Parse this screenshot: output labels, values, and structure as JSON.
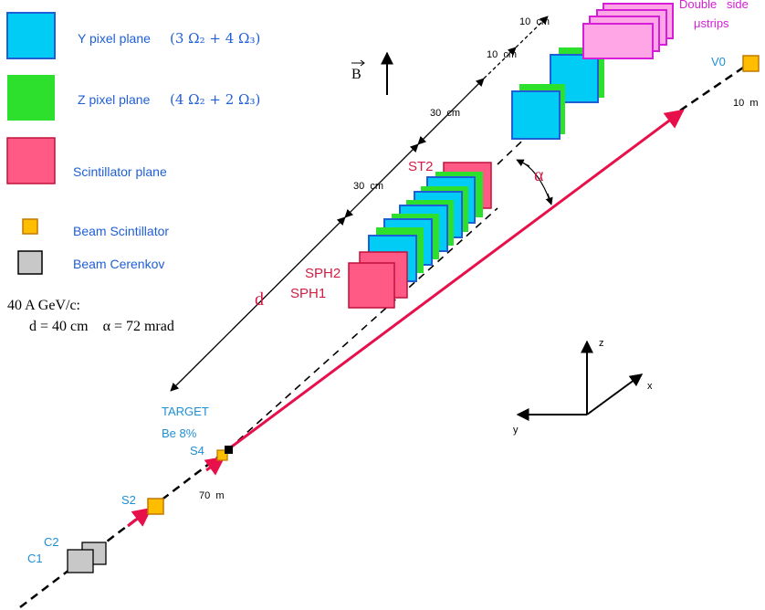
{
  "legend": {
    "y_pixel": {
      "label": "Y pixel plane",
      "formula": "(3 Ω₂ + 4 Ω₃)",
      "color": "#00ccf5"
    },
    "z_pixel": {
      "label": "Z pixel plane",
      "formula": "(4 Ω₂ + 2 Ω₃)",
      "color": "#2ee02e"
    },
    "scintillator": {
      "label": "Scintillator plane",
      "color": "#ff5a86"
    },
    "beam_scintillator": {
      "label": "Beam Scintillator",
      "color": "#ffbd00"
    },
    "beam_cerenkov": {
      "label": "Beam Cerenkov",
      "color": "#c8c8c8"
    }
  },
  "conditions": {
    "line1": "40 A GeV/c:",
    "line2": "d = 40 cm    α = 72 mrad"
  },
  "labels": {
    "b_field": "B",
    "double_side": "Double   side",
    "mu_strips": "μstrips",
    "v0": "V0",
    "dist_10m": "10  m",
    "dist_70m": "70  m",
    "dist_10cm_a": "10  cm",
    "dist_10cm_b": "10  cm",
    "dist_30cm_a": "30  cm",
    "dist_30cm_b": "30  cm",
    "st2": "ST2",
    "sph2": "SPH2",
    "sph1": "SPH1",
    "alpha": "α",
    "d": "d",
    "target": "TARGET",
    "target_material": "Be 8%",
    "s4": "S4",
    "s2": "S2",
    "c2": "C2",
    "c1": "C1",
    "axis_z": "z",
    "axis_x": "x",
    "axis_y": "y"
  },
  "colors": {
    "y_plane": "#00ccf5",
    "z_plane": "#2ee02e",
    "scint": "#ff5a86",
    "strip": "#ffa6e6",
    "strip_border": "#d61ed6",
    "beam_scint": "#ffbd00",
    "cerenkov": "#c8c8c8",
    "track": "#e8104a",
    "label_blue": "#1f5fd6"
  }
}
